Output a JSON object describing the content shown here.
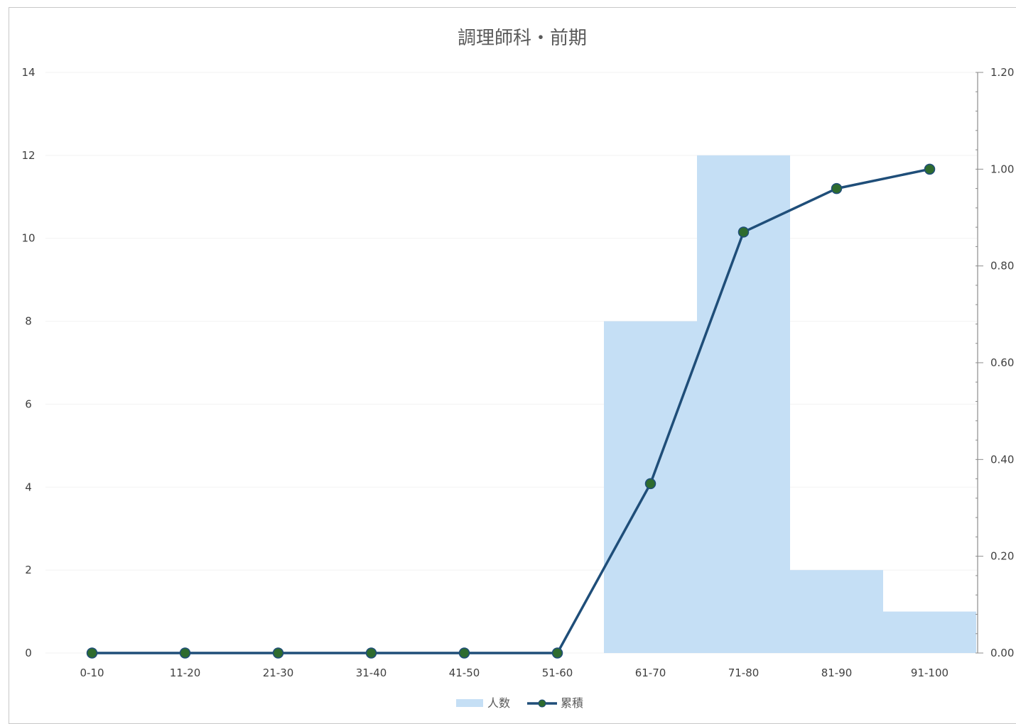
{
  "chart_data": {
    "type": "bar",
    "title": "調理師科・前期",
    "categories": [
      "0-10",
      "11-20",
      "21-30",
      "31-40",
      "41-50",
      "51-60",
      "61-70",
      "71-80",
      "81-90",
      "91-100"
    ],
    "series": [
      {
        "name": "人数",
        "type": "bar",
        "axis": "left",
        "color": "#c5dff5",
        "values": [
          0,
          0,
          0,
          0,
          0,
          0,
          8,
          12,
          2,
          1
        ]
      },
      {
        "name": "累積",
        "type": "line",
        "axis": "right",
        "color": "#1f4e79",
        "marker_color": "#2e6b2e",
        "values": [
          0.0,
          0.0,
          0.0,
          0.0,
          0.0,
          0.0,
          0.35,
          0.87,
          0.96,
          1.0
        ]
      }
    ],
    "y_left": {
      "min": 0,
      "max": 14,
      "ticks": [
        "0",
        "2",
        "4",
        "6",
        "8",
        "10",
        "12",
        "14"
      ]
    },
    "y_right": {
      "min": 0,
      "max": 1.2,
      "ticks": [
        "0.00",
        "0.20",
        "0.40",
        "0.60",
        "0.80",
        "1.00",
        "1.20"
      ]
    },
    "legend_position": "bottom",
    "grid": true
  }
}
